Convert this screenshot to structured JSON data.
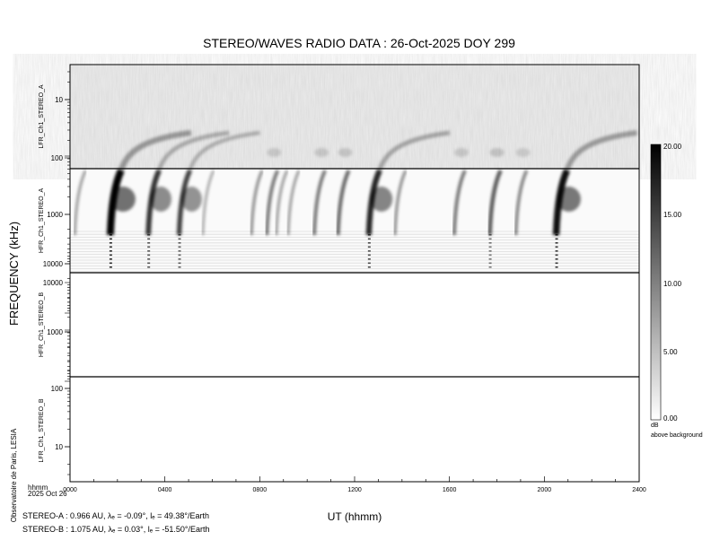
{
  "chart_data": {
    "type": "heatmap",
    "title": "STEREO/WAVES  RADIO  DATA : 26-Oct-2025  DOY 299",
    "xlabel": "UT (hhmm)",
    "ylabel": "FREQUENCY (kHz)",
    "x_unit_label": "hhmm",
    "date_label": "2025 Oct 26",
    "xlim": [
      "0000",
      "2400"
    ],
    "x_ticks": [
      "0000",
      "0400",
      "0800",
      "1200",
      "1600",
      "2000",
      "2400"
    ],
    "panels": [
      {
        "name": "LFR_Ch1_STEREO_A",
        "scale": "log",
        "y_ticks": [
          "10",
          "100"
        ],
        "background": "noisy"
      },
      {
        "name": "HFR_Ch1_STEREO_A",
        "scale": "log",
        "y_ticks": [
          "1000",
          "10000"
        ],
        "background": "quiet"
      },
      {
        "name": "HFR_Ch1_STEREO_B",
        "scale": "log",
        "y_ticks": [
          "10000",
          "1000"
        ],
        "background": "empty"
      },
      {
        "name": "LFR_Ch1_STEREO_B",
        "scale": "log",
        "y_ticks": [
          "100",
          "10"
        ],
        "background": "empty"
      }
    ],
    "colorbar": {
      "range": [
        0,
        20
      ],
      "ticks": [
        "20.00",
        "15.00",
        "10.00",
        "5.00",
        "0.00"
      ],
      "unit": "dB",
      "label": "above background",
      "colors": [
        "#ffffff",
        "#000000"
      ]
    },
    "bursts_stereo_a": [
      {
        "time_h": 0.2,
        "peak_db": 8
      },
      {
        "time_h": 1.7,
        "peak_db": 20
      },
      {
        "time_h": 3.3,
        "peak_db": 16
      },
      {
        "time_h": 4.6,
        "peak_db": 15
      },
      {
        "time_h": 5.6,
        "peak_db": 7
      },
      {
        "time_h": 7.65,
        "peak_db": 9
      },
      {
        "time_h": 8.3,
        "peak_db": 11
      },
      {
        "time_h": 8.7,
        "peak_db": 8
      },
      {
        "time_h": 9.2,
        "peak_db": 8
      },
      {
        "time_h": 10.3,
        "peak_db": 11
      },
      {
        "time_h": 11.3,
        "peak_db": 12
      },
      {
        "time_h": 12.6,
        "peak_db": 17
      },
      {
        "time_h": 13.7,
        "peak_db": 9
      },
      {
        "time_h": 16.2,
        "peak_db": 11
      },
      {
        "time_h": 17.7,
        "peak_db": 13
      },
      {
        "time_h": 18.8,
        "peak_db": 10
      },
      {
        "time_h": 20.5,
        "peak_db": 19
      }
    ]
  },
  "credit": "Observatoire de Paris, LESIA",
  "ephemeris": {
    "stereo_a": "STEREO-A : 0.966 AU, λₑ = -0.09°, lₑ = 49.38°/Earth",
    "stereo_b": "STEREO-B : 1.075 AU, λₑ = 0.03°, lₑ = -51.50°/Earth"
  }
}
